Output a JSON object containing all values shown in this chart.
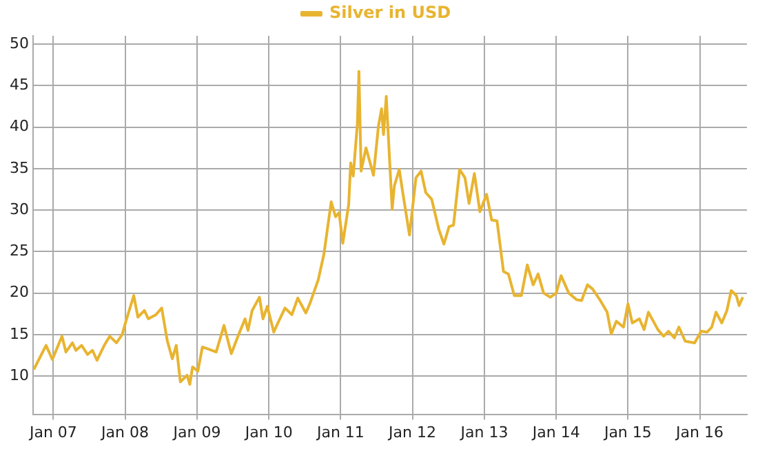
{
  "chart_data": {
    "type": "line",
    "legend": "top",
    "grid": true,
    "marker": "none",
    "line_style": "solid",
    "xlim": [
      "2006-09-20",
      "2016-08-28"
    ],
    "xticks": [
      {
        "value": "2007-01",
        "label": "Jan 07"
      },
      {
        "value": "2008-01",
        "label": "Jan 08"
      },
      {
        "value": "2009-01",
        "label": "Jan 09"
      },
      {
        "value": "2010-01",
        "label": "Jan 10"
      },
      {
        "value": "2011-01",
        "label": "Jan 11"
      },
      {
        "value": "2012-01",
        "label": "Jan 12"
      },
      {
        "value": "2013-01",
        "label": "Jan 13"
      },
      {
        "value": "2014-01",
        "label": "Jan 14"
      },
      {
        "value": "2015-01",
        "label": "Jan 15"
      },
      {
        "value": "2016-01",
        "label": "Jan 16"
      }
    ],
    "ylim": [
      5.4,
      51
    ],
    "yticks": [
      10,
      15,
      20,
      25,
      30,
      35,
      40,
      45,
      50
    ],
    "x": [
      "2006-09-24",
      "2006-11-25",
      "2006-12-27",
      "2007-02-14",
      "2007-03-06",
      "2007-04-08",
      "2007-04-26",
      "2007-05-25",
      "2007-06-24",
      "2007-07-19",
      "2007-08-11",
      "2007-09-17",
      "2007-10-15",
      "2007-11-18",
      "2007-12-17",
      "2008-01-05",
      "2008-02-14",
      "2008-03-06",
      "2008-04-08",
      "2008-04-28",
      "2008-06-06",
      "2008-07-05",
      "2008-08-03",
      "2008-08-28",
      "2008-09-17",
      "2008-10-08",
      "2008-11-11",
      "2008-11-25",
      "2008-12-09",
      "2009-01-05",
      "2009-01-28",
      "2009-03-06",
      "2009-04-08",
      "2009-05-18",
      "2009-06-24",
      "2009-07-28",
      "2009-09-02",
      "2009-09-17",
      "2009-10-08",
      "2009-11-14",
      "2009-12-02",
      "2009-12-24",
      "2010-01-26",
      "2010-02-14",
      "2010-03-24",
      "2010-04-28",
      "2010-05-28",
      "2010-07-08",
      "2010-07-28",
      "2010-09-09",
      "2010-10-08",
      "2010-11-14",
      "2010-12-06",
      "2010-12-24",
      "2011-01-12",
      "2011-02-11",
      "2011-02-21",
      "2011-03-06",
      "2011-03-27",
      "2011-04-04",
      "2011-04-15",
      "2011-05-10",
      "2011-06-17",
      "2011-07-12",
      "2011-07-28",
      "2011-08-07",
      "2011-08-21",
      "2011-09-20",
      "2011-10-01",
      "2011-10-26",
      "2011-11-11",
      "2011-12-17",
      "2012-01-19",
      "2012-02-14",
      "2012-03-09",
      "2012-04-08",
      "2012-05-14",
      "2012-06-09",
      "2012-07-05",
      "2012-07-28",
      "2012-08-28",
      "2012-09-24",
      "2012-10-15",
      "2012-11-11",
      "2012-12-09",
      "2013-01-12",
      "2013-02-07",
      "2013-03-06",
      "2013-04-08",
      "2013-05-03",
      "2013-06-02",
      "2013-07-08",
      "2013-08-07",
      "2013-09-06",
      "2013-10-01",
      "2013-10-29",
      "2013-12-02",
      "2014-01-01",
      "2014-01-26",
      "2014-03-06",
      "2014-04-15",
      "2014-05-10",
      "2014-06-09",
      "2014-07-05",
      "2014-08-11",
      "2014-09-17",
      "2014-10-08",
      "2014-11-03",
      "2014-12-09",
      "2015-01-01",
      "2015-01-23",
      "2015-02-28",
      "2015-03-24",
      "2015-04-15",
      "2015-06-02",
      "2015-07-01",
      "2015-07-26",
      "2015-08-25",
      "2015-09-17",
      "2015-10-19",
      "2015-12-06",
      "2016-01-08",
      "2016-02-07",
      "2016-03-02",
      "2016-03-24",
      "2016-04-22",
      "2016-05-18",
      "2016-06-09",
      "2016-07-05",
      "2016-07-19",
      "2016-08-07"
    ],
    "series": [
      {
        "name": "Silver in USD",
        "color": "#e8b430",
        "values": [
          10.8,
          13.7,
          12.0,
          14.8,
          12.9,
          14.0,
          13.1,
          13.7,
          12.6,
          13.1,
          11.9,
          13.7,
          14.8,
          14.0,
          15.0,
          16.6,
          19.7,
          17.1,
          17.9,
          16.9,
          17.4,
          18.2,
          14.2,
          12.1,
          13.7,
          9.3,
          10.1,
          9.0,
          11.1,
          10.6,
          13.5,
          13.2,
          12.9,
          16.1,
          12.7,
          14.8,
          16.9,
          15.5,
          17.9,
          19.5,
          16.9,
          18.4,
          15.3,
          16.3,
          18.2,
          17.4,
          19.4,
          17.6,
          18.7,
          21.6,
          24.7,
          31.0,
          29.2,
          29.7,
          26.0,
          30.7,
          35.7,
          34.1,
          40.4,
          46.7,
          34.7,
          37.5,
          34.2,
          40.1,
          42.2,
          39.1,
          43.7,
          30.1,
          32.9,
          34.9,
          32.4,
          27.0,
          33.9,
          34.7,
          32.1,
          31.3,
          27.7,
          25.9,
          28.0,
          28.2,
          34.9,
          33.9,
          30.8,
          34.4,
          29.8,
          31.9,
          28.8,
          28.7,
          22.6,
          22.3,
          19.7,
          19.7,
          23.4,
          21.0,
          22.3,
          20.0,
          19.5,
          20.0,
          22.1,
          20.0,
          19.2,
          19.1,
          21.0,
          20.5,
          19.2,
          17.7,
          15.1,
          16.6,
          15.9,
          18.7,
          16.4,
          16.9,
          15.6,
          17.7,
          15.6,
          14.8,
          15.4,
          14.6,
          15.9,
          14.2,
          14.0,
          15.4,
          15.3,
          15.9,
          17.7,
          16.4,
          17.9,
          20.3,
          19.7,
          18.5,
          19.5
        ]
      }
    ]
  }
}
